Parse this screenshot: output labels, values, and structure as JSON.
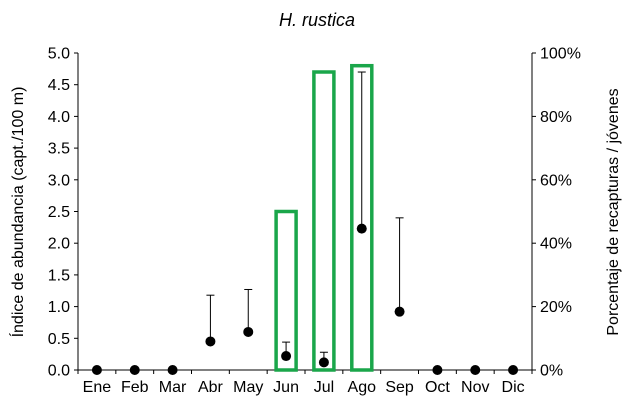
{
  "chart_data": {
    "type": "bar",
    "title": "H. rustica",
    "ylabel": "Índice de abundancia (capt./100 m)",
    "y2label": "Porcentaje de recapturas / jóvenes",
    "ylim": [
      0,
      5.0
    ],
    "y2lim": [
      0,
      100
    ],
    "yticks": [
      "0.0",
      "0.5",
      "1.0",
      "1.5",
      "2.0",
      "2.5",
      "3.0",
      "3.5",
      "4.0",
      "4.5",
      "5.0"
    ],
    "y2ticks": [
      "0%",
      "20%",
      "40%",
      "60%",
      "80%",
      "100%"
    ],
    "categories": [
      "Ene",
      "Feb",
      "Mar",
      "Abr",
      "May",
      "Jun",
      "Jul",
      "Ago",
      "Sep",
      "Oct",
      "Nov",
      "Dic"
    ],
    "grid": false,
    "series": [
      {
        "kind": "bar",
        "axis": "right",
        "color": "#1aa64a",
        "values": [
          0,
          0,
          0,
          0,
          0,
          50,
          94,
          96,
          0,
          0,
          0,
          0
        ]
      },
      {
        "kind": "point",
        "axis": "left",
        "color": "#000000",
        "values": [
          0.0,
          0.0,
          0.0,
          0.45,
          0.6,
          0.22,
          0.12,
          2.23,
          0.92,
          0.0,
          0.0,
          0.0
        ],
        "error_upper": [
          0.0,
          0.0,
          0.0,
          1.18,
          1.27,
          0.44,
          0.28,
          4.7,
          2.4,
          0.0,
          0.0,
          0.0
        ]
      }
    ]
  }
}
